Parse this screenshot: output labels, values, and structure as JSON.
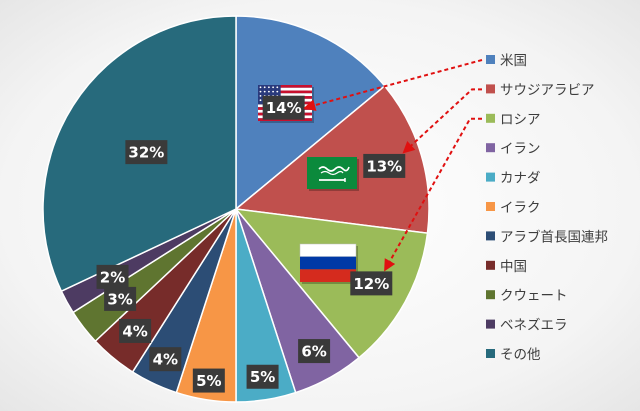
{
  "chart_data": {
    "type": "pie",
    "start_angle_deg": 0,
    "direction": "clockwise",
    "slices": [
      {
        "name": "米国",
        "value": 14,
        "label": "14%",
        "color": "#4f81bd"
      },
      {
        "name": "サウジアラビア",
        "value": 13,
        "label": "13%",
        "color": "#c0504d"
      },
      {
        "name": "ロシア",
        "value": 12,
        "label": "12%",
        "color": "#9bbb59"
      },
      {
        "name": "イラン",
        "value": 6,
        "label": "6%",
        "color": "#8064a2"
      },
      {
        "name": "カナダ",
        "value": 5,
        "label": "5%",
        "color": "#4bacc6"
      },
      {
        "name": "イラク",
        "value": 5,
        "label": "5%",
        "color": "#f79646"
      },
      {
        "name": "アラブ首長国連邦",
        "value": 4,
        "label": "4%",
        "color": "#2c4d75"
      },
      {
        "name": "中国",
        "value": 4,
        "label": "4%",
        "color": "#772c2a"
      },
      {
        "name": "クウェート",
        "value": 3,
        "label": "3%",
        "color": "#5f7530"
      },
      {
        "name": "ベネズエラ",
        "value": 2,
        "label": "2%",
        "color": "#4d3b62"
      },
      {
        "name": "その他",
        "value": 32,
        "label": "32%",
        "color": "#276a7c"
      }
    ],
    "legend_position": "right",
    "annotations": {
      "flags": [
        "us-flag-icon",
        "saudi-flag-icon",
        "russia-flag-icon"
      ],
      "arrow_color": "#e01010",
      "arrow_style": "dashed"
    }
  }
}
